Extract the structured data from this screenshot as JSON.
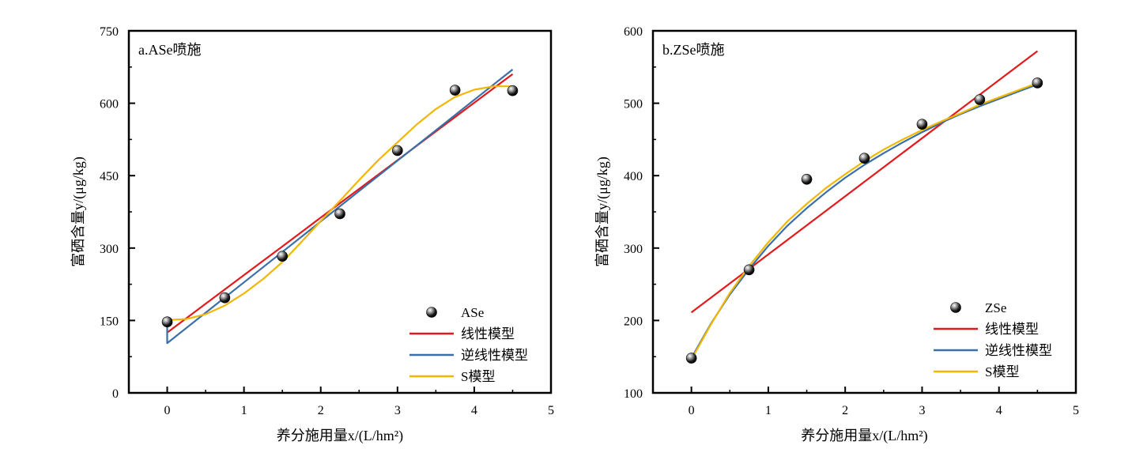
{
  "chart_data": [
    {
      "type": "scatter",
      "panel_label": "a.ASe喷施",
      "xlabel": "养分施用量x/(L/hm²)",
      "ylabel": "富硒含量y/(μg/kg)",
      "xlim": [
        -0.5,
        5
      ],
      "ylim": [
        0,
        750
      ],
      "xticks": [
        0,
        1,
        2,
        3,
        4,
        5
      ],
      "yticks": [
        0,
        150,
        300,
        450,
        600,
        750
      ],
      "points": {
        "name": "ASe",
        "x": [
          0,
          0.75,
          1.5,
          2.25,
          3,
          3.75,
          4.5
        ],
        "y": [
          147,
          197,
          283,
          371,
          502,
          627,
          626
        ]
      },
      "curves": [
        {
          "name": "线性模型",
          "color": "#e31a1c",
          "x": [
            0,
            0.5,
            1,
            1.5,
            2,
            2.5,
            3,
            3.5,
            4,
            4.5
          ],
          "y": [
            125,
            184.5,
            244,
            303.5,
            363,
            422.5,
            482,
            541.5,
            601,
            660.5
          ]
        },
        {
          "name": "逆线性模型",
          "color": "#3a6fa8",
          "x": [
            0,
            0,
            0.5,
            1,
            1.5,
            2,
            2.5,
            3,
            3.5,
            4,
            4.5
          ],
          "y": [
            145,
            103,
            166,
            229,
            292,
            355,
            418,
            481,
            544,
            607,
            670
          ]
        },
        {
          "name": "S模型",
          "color": "#f2b705",
          "x": [
            0,
            0.25,
            0.5,
            0.75,
            1,
            1.25,
            1.5,
            1.75,
            2,
            2.25,
            2.5,
            2.75,
            3,
            3.25,
            3.5,
            3.75,
            4,
            4.25,
            4.5
          ],
          "y": [
            151,
            153,
            163,
            181,
            206,
            236,
            271,
            313,
            356,
            398,
            441,
            482,
            519,
            556,
            588,
            613,
            628,
            635,
            635
          ]
        }
      ],
      "legend": {
        "placement": "bottom-right",
        "entries": [
          "ASe",
          "线性模型",
          "逆线性模型",
          "S模型"
        ]
      }
    },
    {
      "type": "scatter",
      "panel_label": "b.ZSe喷施",
      "xlabel": "养分施用量x/(L/hm²)",
      "ylabel": "富硒含量y/(μg/kg)",
      "xlim": [
        -0.5,
        5
      ],
      "ylim": [
        100,
        600
      ],
      "xticks": [
        0,
        1,
        2,
        3,
        4,
        5
      ],
      "yticks": [
        100,
        200,
        300,
        400,
        500,
        600
      ],
      "points": {
        "name": "ZSe",
        "x": [
          0,
          0.75,
          1.5,
          2.25,
          3,
          3.75,
          4.5
        ],
        "y": [
          148,
          270,
          395,
          424,
          471,
          505,
          528
        ]
      },
      "curves": [
        {
          "name": "线性模型",
          "color": "#e31a1c",
          "x": [
            0,
            4.5
          ],
          "y": [
            211,
            572
          ]
        },
        {
          "name": "逆线性模型",
          "color": "#3a6fa8",
          "x": [
            0,
            0.25,
            0.5,
            0.75,
            1,
            1.25,
            1.5,
            1.75,
            2,
            2.25,
            2.5,
            2.75,
            3,
            3.25,
            3.5,
            3.75,
            4,
            4.25,
            4.5
          ],
          "y": [
            148,
            195,
            236,
            271,
            303,
            331,
            355,
            377,
            397,
            415,
            431,
            446,
            460,
            473,
            485,
            496,
            506,
            516,
            526
          ]
        },
        {
          "name": "S模型",
          "color": "#f2b705",
          "x": [
            0,
            0.25,
            0.5,
            0.75,
            1,
            1.25,
            1.5,
            1.75,
            2,
            2.25,
            2.5,
            2.75,
            3,
            3.25,
            3.5,
            3.75,
            4,
            4.25,
            4.5
          ],
          "y": [
            146,
            194,
            238,
            275,
            308,
            337,
            361,
            383,
            402,
            420,
            436,
            450,
            463,
            475,
            486,
            498,
            508,
            518,
            528
          ]
        }
      ],
      "legend": {
        "placement": "bottom-right",
        "entries": [
          "ZSe",
          "线性模型",
          "逆线性模型",
          "S模型"
        ]
      }
    }
  ]
}
